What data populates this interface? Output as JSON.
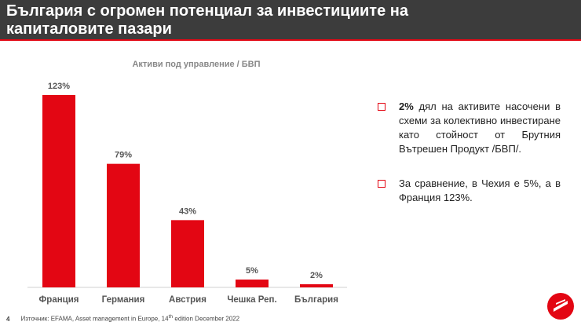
{
  "header": {
    "title": "България с огромен потенциал за инвестициите на капиталовите пазари"
  },
  "chart_data": {
    "type": "bar",
    "title": "Активи под управление / БВП",
    "categories": [
      "Франция",
      "Германия",
      "Австрия",
      "Чешка Реп.",
      "България"
    ],
    "values": [
      123,
      79,
      43,
      5,
      2
    ],
    "value_labels": [
      "123%",
      "79%",
      "43%",
      "5%",
      "2%"
    ],
    "color": "#e30613"
  },
  "bullets": [
    {
      "bold": "2%",
      "text": "дял на активите насочени в схеми за колективно инвестиране като стойност от Брутния Вътрешен Продукт /БВП/."
    },
    {
      "text": "За сравнение, в Чехия е 5%, а в Франция 123%."
    }
  ],
  "footer": {
    "page": "4",
    "source": "Източник: EFAMA, Asset management in Europe, 14",
    "source_sup": "th",
    "source_end": " edition December 2022"
  }
}
